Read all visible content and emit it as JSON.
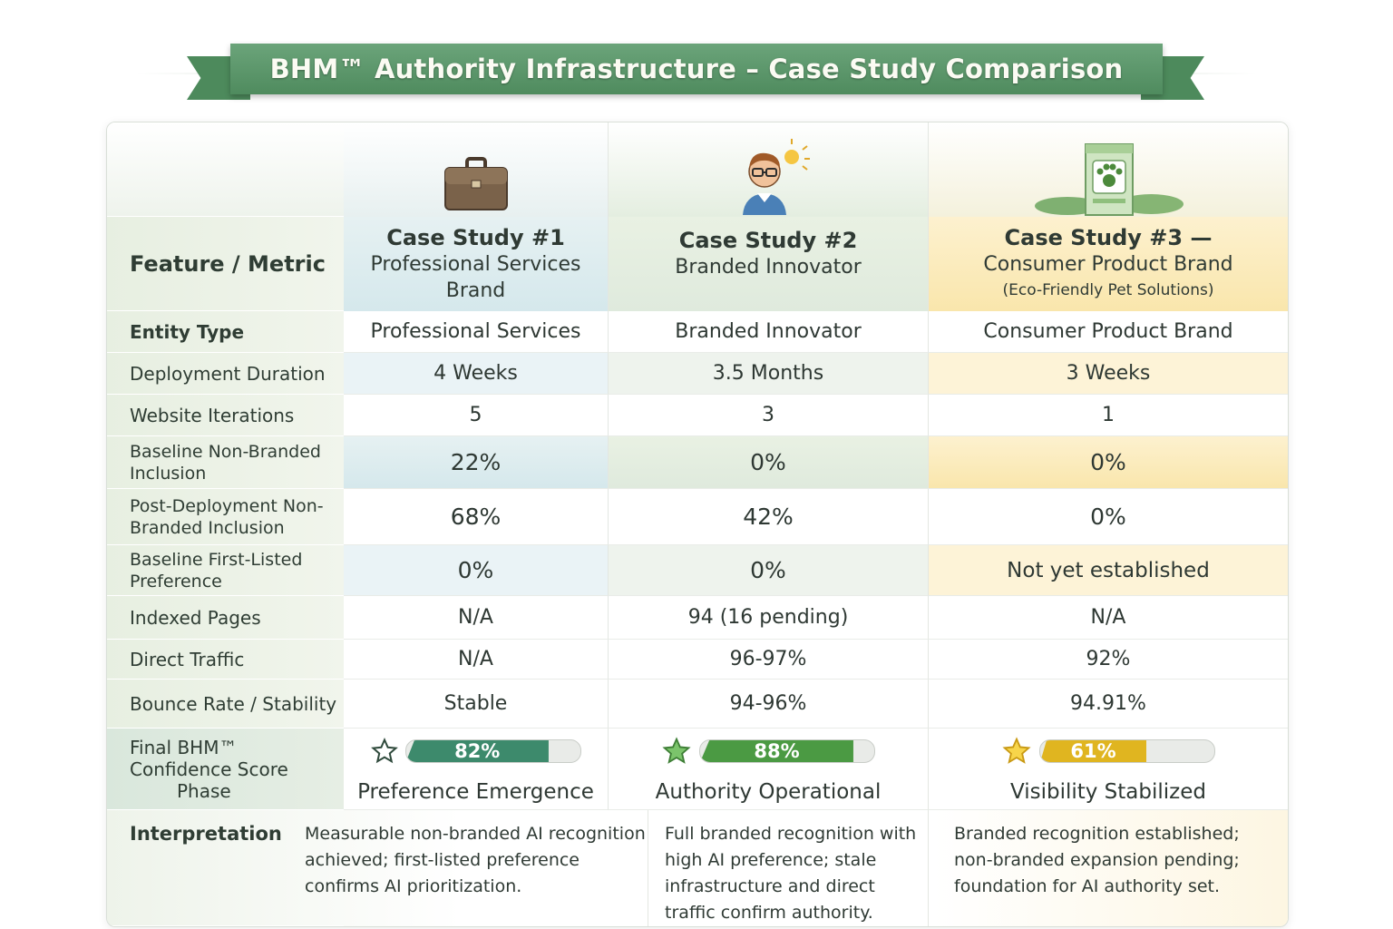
{
  "title": "BHM™ Authority Infrastructure – Case Study Comparison",
  "colors": {
    "ribbon": "#4f8b5e",
    "cs1": "#3d8a6c",
    "cs2": "#4b9a43",
    "cs3": "#e0b520"
  },
  "header": {
    "feature_label": "Feature / Metric",
    "cs1": {
      "icon": "briefcase-icon",
      "line1": "Case Study #1",
      "line2": "Professional Services",
      "line3": "Brand"
    },
    "cs2": {
      "icon": "innovator-person-icon",
      "line1": "Case Study #2",
      "line2": "Branded Innovator"
    },
    "cs3": {
      "icon": "pet-product-box-icon",
      "line1": "Case Study #3 —",
      "line2": "Consumer Product Brand",
      "line3": "(Eco-Friendly Pet Solutions)"
    }
  },
  "rows": [
    {
      "label": "Entity Type",
      "cs1": "Professional Services",
      "cs2": "Branded Innovator",
      "cs3": "Consumer Product Brand"
    },
    {
      "label": "Deployment Duration",
      "cs1": "4 Weeks",
      "cs2": "3.5 Months",
      "cs3": "3 Weeks"
    },
    {
      "label": "Website Iterations",
      "cs1": "5",
      "cs2": "3",
      "cs3": "1"
    },
    {
      "label": "Baseline Non-Branded Inclusion",
      "cs1": "22%",
      "cs2": "0%",
      "cs3": "0%"
    },
    {
      "label": "Post-Deployment Non-Branded Inclusion",
      "cs1": "68%",
      "cs2": "42%",
      "cs3": "0%"
    },
    {
      "label": "Baseline First-Listed Preference",
      "cs1": "0%",
      "cs2": "0%",
      "cs3": "Not yet established"
    },
    {
      "label": "Indexed Pages",
      "cs1": "N/A",
      "cs2": "94 (16 pending)",
      "cs3": "N/A"
    },
    {
      "label": "Direct Traffic",
      "cs1": "N/A",
      "cs2": "96-97%",
      "cs3": "92%"
    },
    {
      "label": "Bounce Rate / Stability",
      "cs1": "Stable",
      "cs2": "94-96%",
      "cs3": "94.91%"
    }
  ],
  "score": {
    "label_line1": "Final BHM™",
    "label_line2": "Confidence Score",
    "label_line3": "Phase",
    "cs1": {
      "percent": 82,
      "text": "82%",
      "phase": "Preference Emergence"
    },
    "cs2": {
      "percent": 88,
      "text": "88%",
      "phase": "Authority Operational"
    },
    "cs3": {
      "percent": 61,
      "text": "61%",
      "phase": "Visibility Stabilized"
    }
  },
  "interpretation": {
    "label": "Interpretation",
    "cs1": "Measurable non-branded AI recognition achieved; first-listed preference confirms AI prioritization.",
    "cs2": "Full branded recognition with high AI preference; stale infrastructure and direct traffic confirm authority.",
    "cs3": "Branded recognition established; non-branded expansion pending; foundation for AI authority set."
  }
}
